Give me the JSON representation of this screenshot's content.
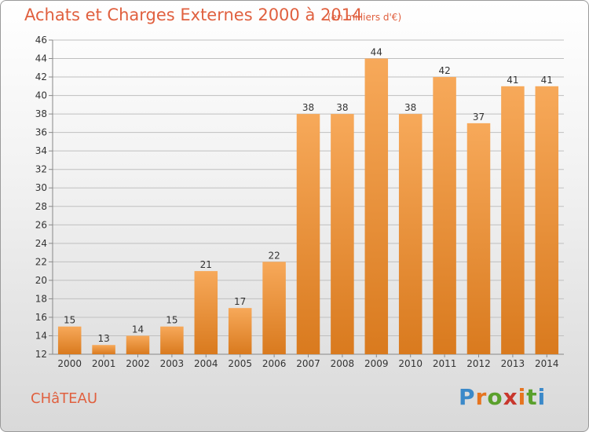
{
  "header": {
    "title": "Achats et Charges Externes 2000 à 2014",
    "subtitle": "(en milliers d'€)"
  },
  "footer": {
    "place": "CHâTEAU",
    "logo": "Proxiti"
  },
  "colors": {
    "title": "#e0603f",
    "bar_light": "#f7a95a",
    "bar_dark": "#d97a1e",
    "grid": "#bfbfbf"
  },
  "chart_data": {
    "type": "bar",
    "title": "Achats et Charges Externes 2000 à 2014",
    "subtitle": "(en milliers d'€)",
    "xlabel": "",
    "ylabel": "",
    "categories": [
      "2000",
      "2001",
      "2002",
      "2003",
      "2004",
      "2005",
      "2006",
      "2007",
      "2008",
      "2009",
      "2010",
      "2011",
      "2012",
      "2013",
      "2014"
    ],
    "values": [
      15,
      13,
      14,
      15,
      21,
      17,
      22,
      38,
      38,
      44,
      38,
      42,
      37,
      41,
      41
    ],
    "ylim": [
      12,
      46
    ],
    "yticks": [
      12,
      14,
      16,
      18,
      20,
      22,
      24,
      26,
      28,
      30,
      32,
      34,
      36,
      38,
      40,
      42,
      44,
      46
    ],
    "grid": true,
    "data_labels": true,
    "legend": "none"
  }
}
